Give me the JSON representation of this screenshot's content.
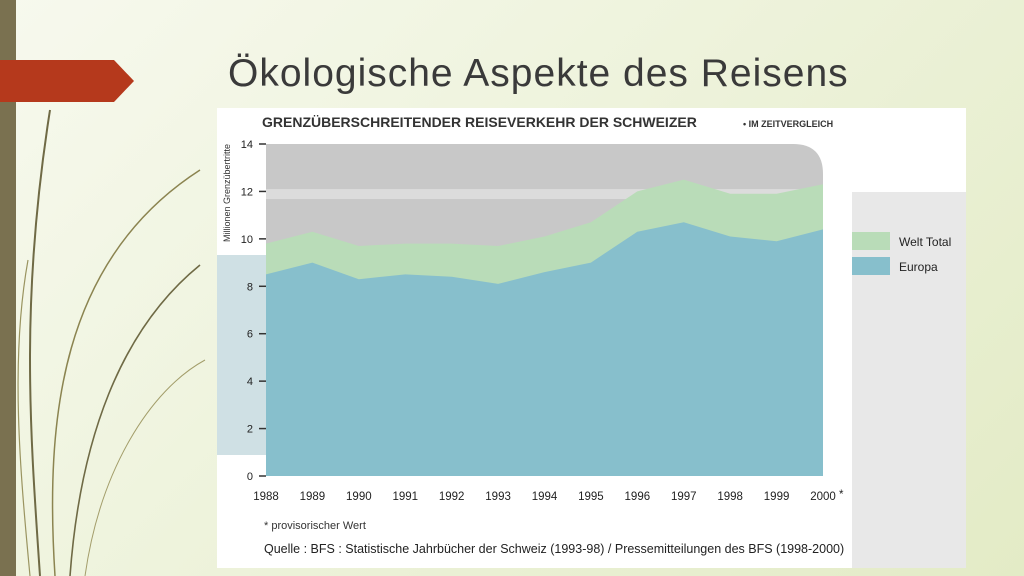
{
  "slide": {
    "title": "Ökologische Aspekte des Reisens"
  },
  "colors": {
    "accent": "#b5391c",
    "frame": "#7a7150",
    "welt_total": "#b9dcb8",
    "europa": "#87bfcc",
    "plot_bg": "#c8c8c8",
    "plot_bg_light": "#dcdcdc",
    "legend_bg": "#e8e8e8",
    "axis_strip": "#cfe0e4"
  },
  "chart_data": {
    "type": "area",
    "title": "GRENZÜBERSCHREITENDER REISEVERKEHR DER SCHWEIZER",
    "subtitle": "• IM ZEITVERGLEICH",
    "ylabel": "Millionen Grenzübertritte",
    "xlabel": "",
    "ylim": [
      0,
      14
    ],
    "yticks": [
      0,
      2,
      4,
      6,
      8,
      10,
      12,
      14
    ],
    "categories": [
      "1988",
      "1989",
      "1990",
      "1991",
      "1992",
      "1993",
      "1994",
      "1995",
      "1996",
      "1997",
      "1998",
      "1999",
      "2000"
    ],
    "last_category_marker": "*",
    "series": [
      {
        "name": "Welt Total",
        "values": [
          9.8,
          10.3,
          9.7,
          9.8,
          9.8,
          9.7,
          10.1,
          10.7,
          12.0,
          12.5,
          11.9,
          11.9,
          12.3
        ]
      },
      {
        "name": "Europa",
        "values": [
          8.5,
          9.0,
          8.3,
          8.5,
          8.4,
          8.1,
          8.6,
          9.0,
          10.3,
          10.7,
          10.1,
          9.9,
          10.4
        ]
      }
    ],
    "legend_position": "right",
    "footnote": "* provisorischer Wert",
    "source": "Quelle : BFS : Statistische Jahrbücher der Schweiz (1993-98) / Pressemitteilungen des BFS (1998-2000)"
  }
}
